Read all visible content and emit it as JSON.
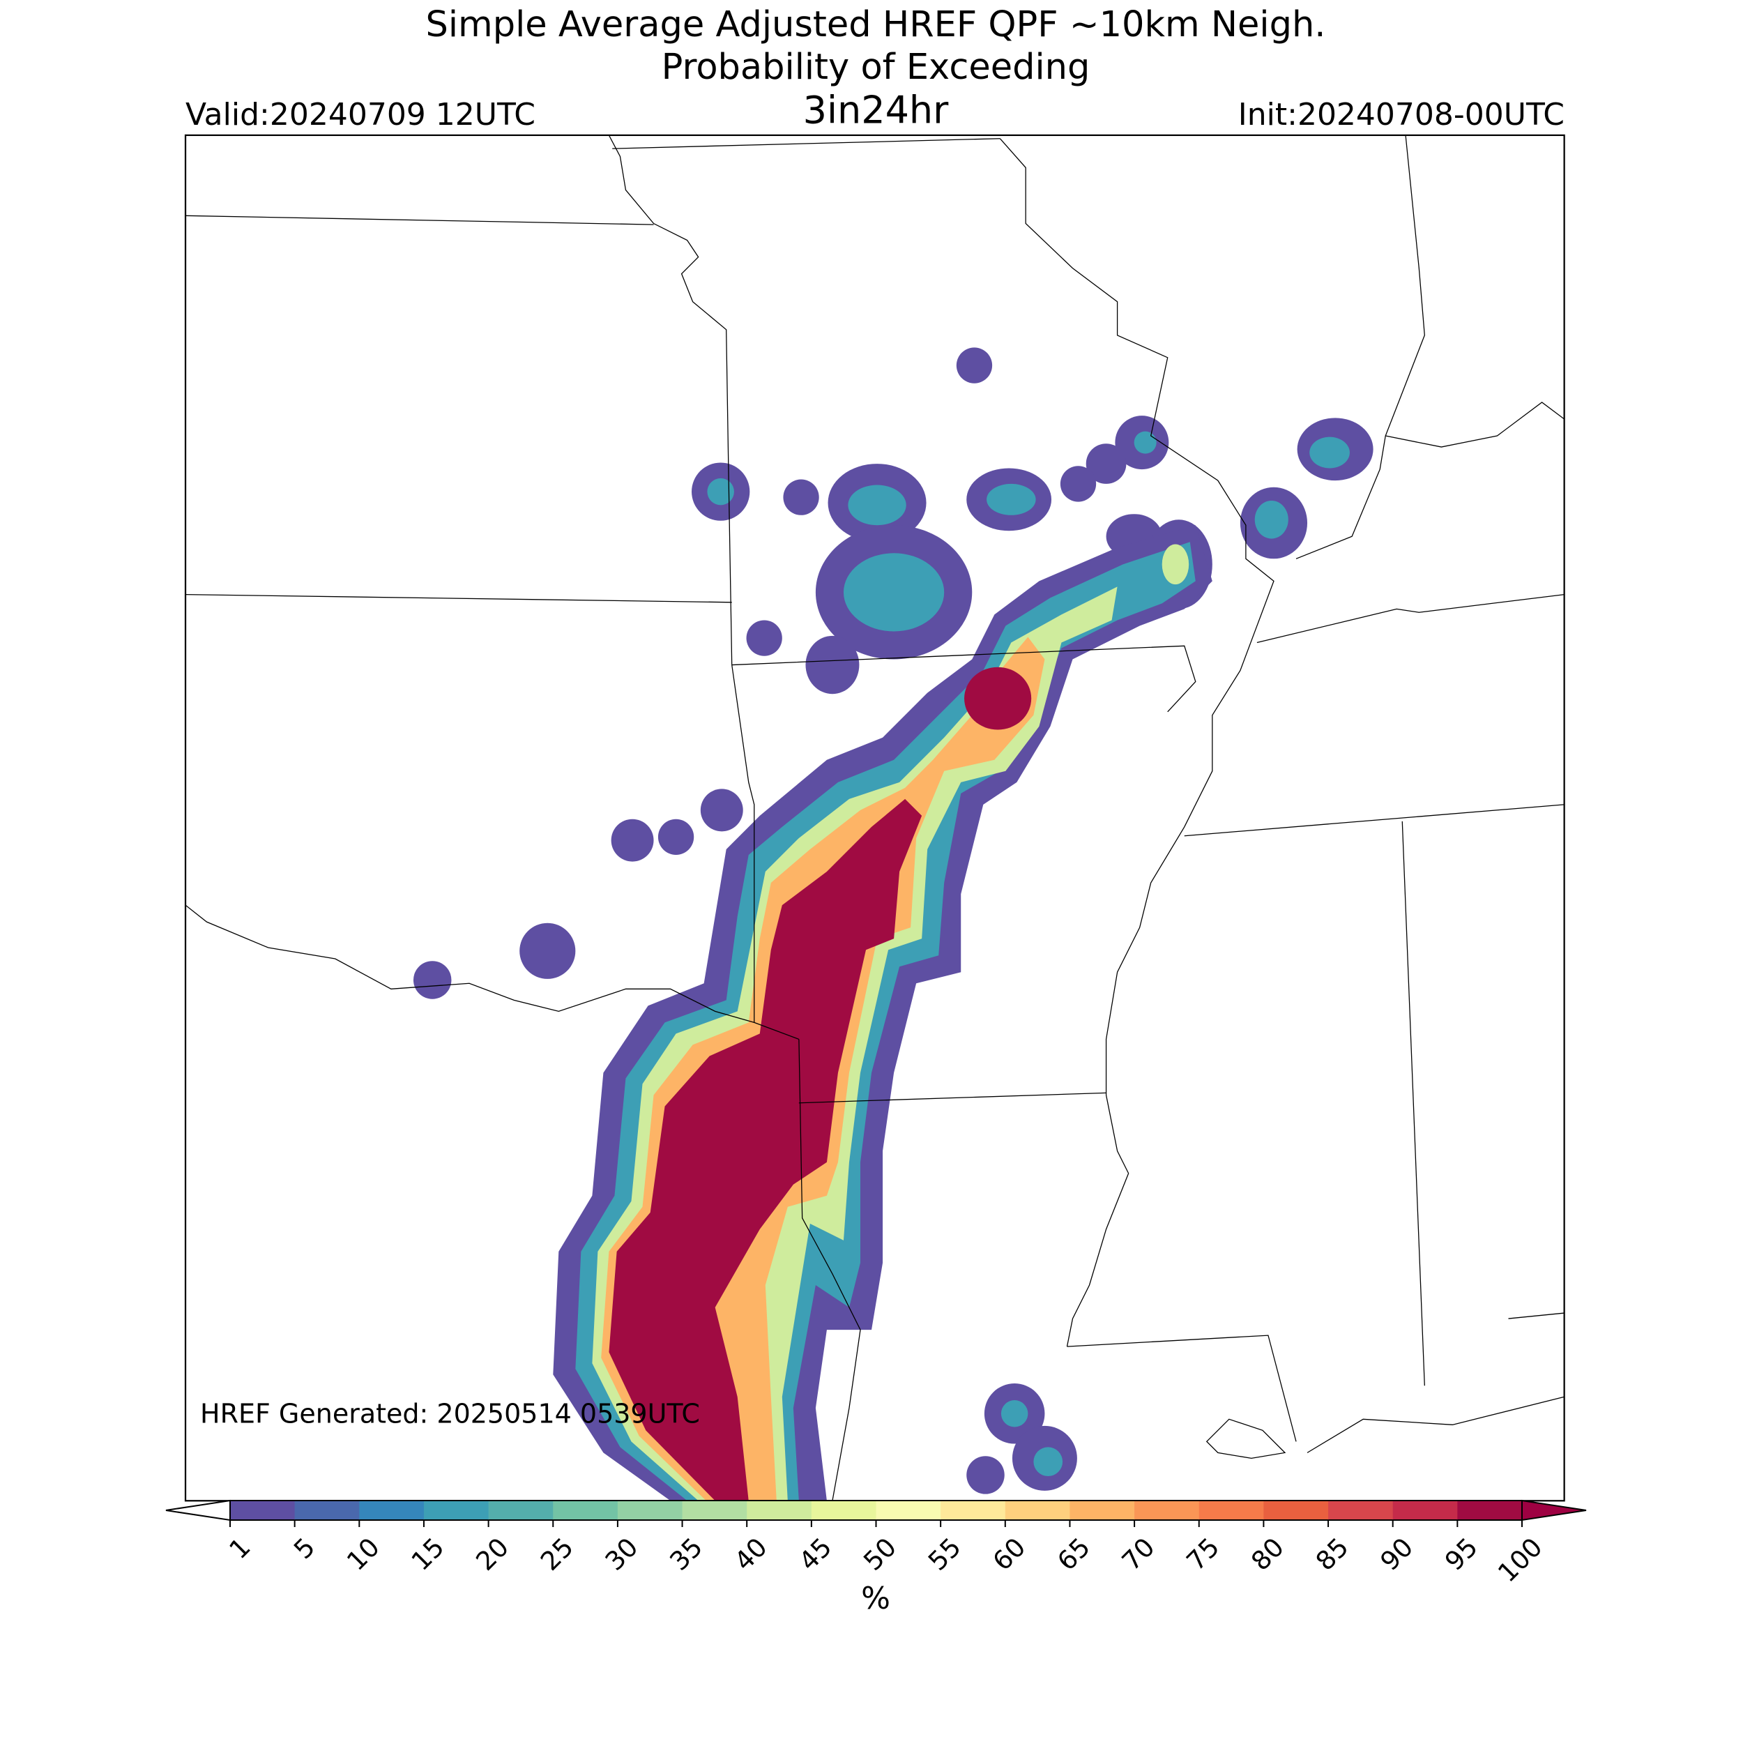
{
  "header": {
    "title": "Simple Average Adjusted HREF QPF ~10km Neigh.",
    "subtitle": "Probability of Exceeding",
    "threshold": "3in24hr",
    "valid": "Valid:20240709 12UTC",
    "init": "Init:20240708-00UTC"
  },
  "map": {
    "generated": "HREF Generated: 20250514 0539UTC"
  },
  "colorbar": {
    "label": "%",
    "ticks": [
      1,
      5,
      10,
      15,
      20,
      25,
      30,
      35,
      40,
      45,
      50,
      55,
      60,
      65,
      70,
      75,
      80,
      85,
      90,
      95,
      100
    ],
    "colors": [
      "#5e4fa2",
      "#4a68ad",
      "#3586bb",
      "#3d9fb5",
      "#54aeac",
      "#73c3a5",
      "#93d1a4",
      "#b2dfa3",
      "#cfec9d",
      "#e8f69c",
      "#f8fbb1",
      "#fee99a",
      "#fed07e",
      "#fdb466",
      "#fa9656",
      "#f67b4a",
      "#e9603f",
      "#d8464c",
      "#c52b4a",
      "#a00b42"
    ],
    "under_color": "#ffffff",
    "over_color": "#9e0142"
  }
}
